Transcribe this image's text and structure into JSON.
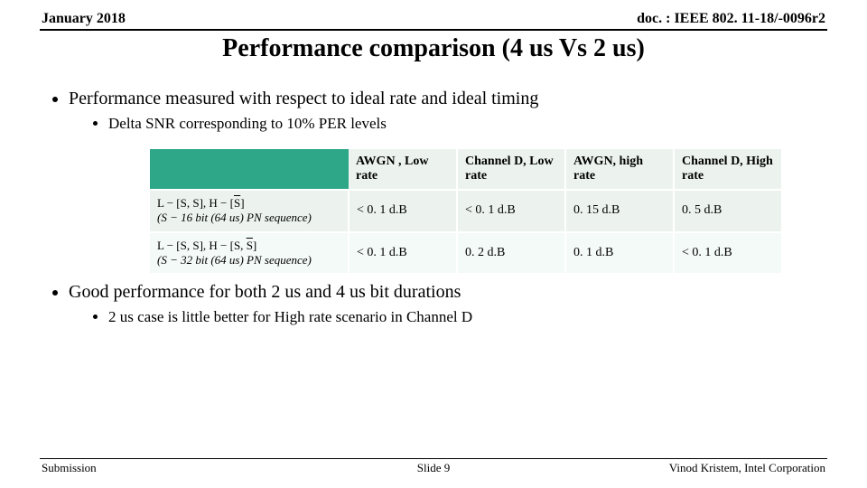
{
  "header": {
    "left": "January 2018",
    "right": "doc. : IEEE 802. 11-18/-0096r2"
  },
  "title": "Performance comparison (4 us Vs 2 us)",
  "bullets": {
    "b1": "Performance measured with respect to ideal rate and ideal timing",
    "b1a": "Delta SNR corresponding to 10% PER levels",
    "b2": "Good performance for both 2 us and 4 us bit durations",
    "b2a": "2 us case is little better for High rate scenario in Channel D"
  },
  "table": {
    "headers": [
      "AWGN , Low rate",
      "Channel D, Low rate",
      "AWGN, high rate",
      "Channel D, High rate"
    ],
    "rows": [
      {
        "m1_pre": "L − [S, S], H − [",
        "m1_ob": "S",
        "m1_post": "]",
        "m2_pre": "(S − 16 bit (64 us) PN sequence)",
        "cells": [
          "< 0. 1 d.B",
          "< 0. 1 d.B",
          "0. 15 d.B",
          "0. 5 d.B"
        ]
      },
      {
        "m1_pre": "L − [S, S], H − [S, ",
        "m1_ob": "S",
        "m1_post": "]",
        "m2_pre": "(S − 32 bit (64 us) PN sequence)",
        "cells": [
          "< 0. 1 d.B",
          "0. 2 d.B",
          "0. 1 d.B",
          "< 0. 1 d.B"
        ]
      }
    ],
    "colors": {
      "header_bg": "#2ea789",
      "cell_bg": "#ecf3ef",
      "alt_bg": "#f4faf7"
    }
  },
  "footer": {
    "left": "Submission",
    "center": "Slide 9",
    "right": "Vinod Kristem, Intel Corporation"
  }
}
